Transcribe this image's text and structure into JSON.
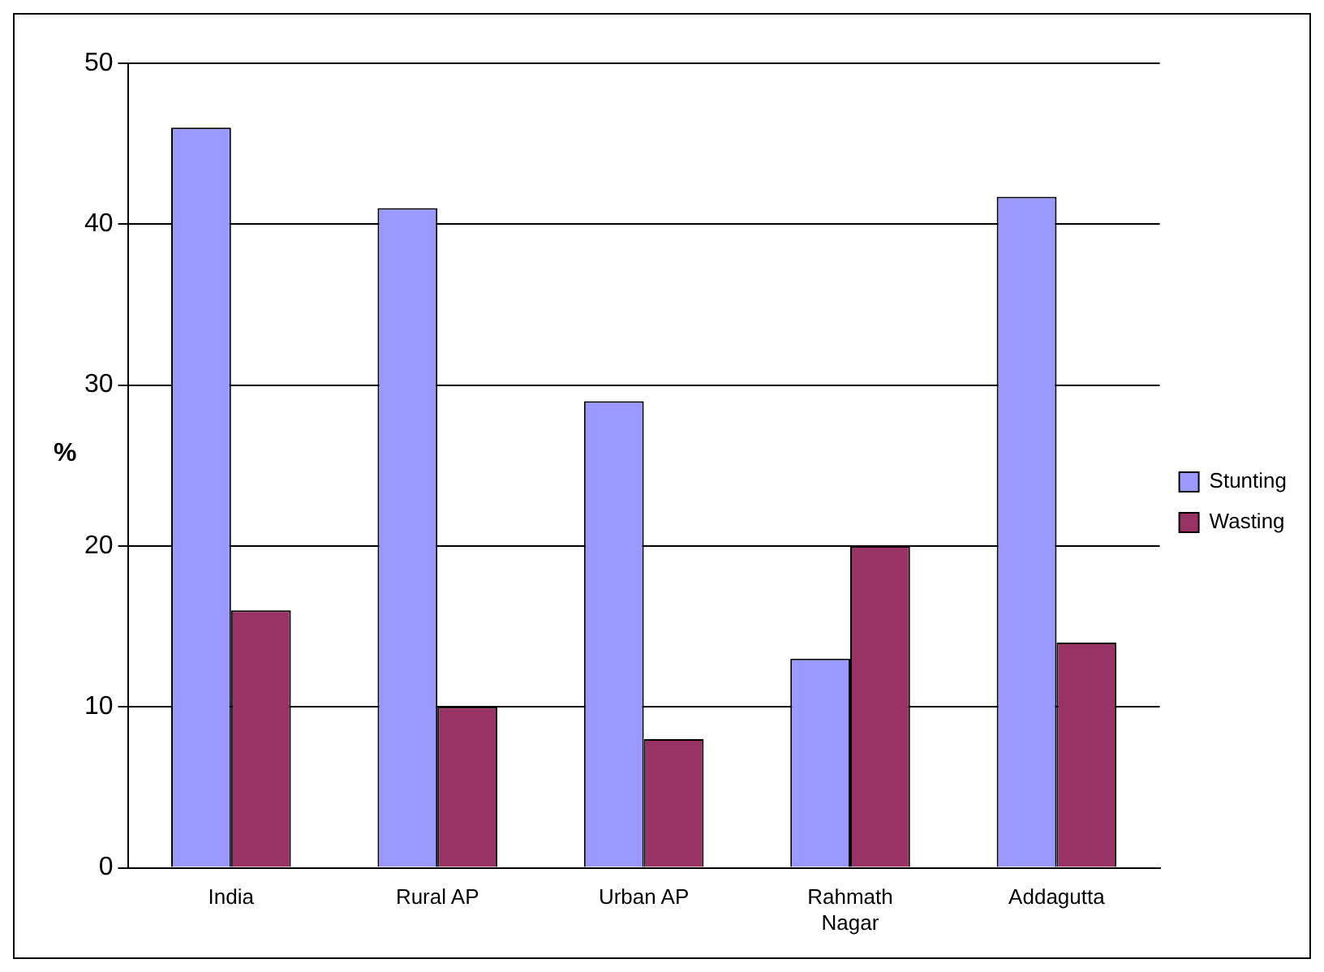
{
  "chart_data": {
    "type": "bar",
    "ylabel": "%",
    "categories": [
      "India",
      "Rural AP",
      "Urban AP",
      "Rahmath Nagar",
      "Addagutta"
    ],
    "series": [
      {
        "name": "Stunting",
        "color": "#9999ff",
        "values": [
          46,
          41,
          29,
          13,
          41.7
        ]
      },
      {
        "name": "Wasting",
        "color": "#993366",
        "values": [
          16,
          10,
          8,
          20,
          14
        ]
      }
    ],
    "ylim": [
      0,
      50
    ],
    "yticks": [
      0,
      10,
      20,
      30,
      40,
      50
    ],
    "grid": "y",
    "legend": "right"
  }
}
